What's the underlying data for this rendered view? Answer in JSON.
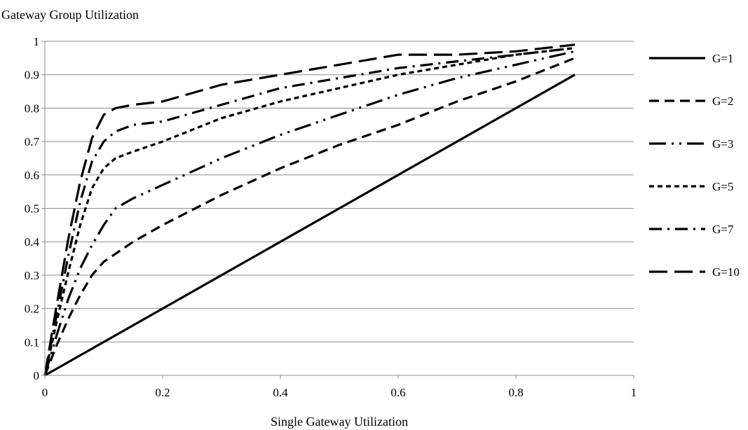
{
  "chart_data": {
    "type": "line",
    "ylabel": "Gateway Group Utilization",
    "xlabel": "Single Gateway Utilization",
    "xlim": [
      0,
      1
    ],
    "ylim": [
      0,
      1
    ],
    "x_ticks": [
      "0",
      "0.2",
      "0.4",
      "0.6",
      "0.8",
      "1"
    ],
    "y_ticks": [
      "0",
      "0.1",
      "0.2",
      "0.3",
      "0.4",
      "0.5",
      "0.6",
      "0.7",
      "0.8",
      "0.9",
      "1"
    ],
    "grid": "horizontal",
    "legend_position": "right",
    "series": [
      {
        "name": "G=1",
        "dash": "solid",
        "x": [
          0,
          0.9
        ],
        "y": [
          0,
          0.9
        ]
      },
      {
        "name": "G=2",
        "dash": "dash",
        "x": [
          0,
          0.02,
          0.04,
          0.06,
          0.08,
          0.1,
          0.15,
          0.2,
          0.3,
          0.4,
          0.5,
          0.6,
          0.7,
          0.8,
          0.9
        ],
        "y": [
          0,
          0.09,
          0.17,
          0.24,
          0.3,
          0.34,
          0.4,
          0.45,
          0.54,
          0.62,
          0.69,
          0.75,
          0.82,
          0.88,
          0.95
        ]
      },
      {
        "name": "G=3",
        "dash": "dash-dot-dot",
        "x": [
          0,
          0.02,
          0.04,
          0.06,
          0.08,
          0.1,
          0.12,
          0.15,
          0.2,
          0.3,
          0.4,
          0.5,
          0.6,
          0.7,
          0.8,
          0.9
        ],
        "y": [
          0,
          0.12,
          0.23,
          0.32,
          0.39,
          0.45,
          0.5,
          0.53,
          0.57,
          0.65,
          0.72,
          0.78,
          0.84,
          0.89,
          0.93,
          0.97
        ]
      },
      {
        "name": "G=5",
        "dash": "short-dash",
        "x": [
          0,
          0.02,
          0.04,
          0.06,
          0.08,
          0.1,
          0.12,
          0.15,
          0.2,
          0.3,
          0.4,
          0.5,
          0.6,
          0.7,
          0.8,
          0.9
        ],
        "y": [
          0,
          0.16,
          0.31,
          0.45,
          0.56,
          0.62,
          0.65,
          0.67,
          0.7,
          0.77,
          0.82,
          0.86,
          0.9,
          0.93,
          0.96,
          0.98
        ]
      },
      {
        "name": "G=7",
        "dash": "dash-dot",
        "x": [
          0,
          0.02,
          0.04,
          0.06,
          0.08,
          0.1,
          0.12,
          0.15,
          0.2,
          0.3,
          0.4,
          0.5,
          0.6,
          0.7,
          0.8,
          0.9
        ],
        "y": [
          0,
          0.18,
          0.36,
          0.52,
          0.64,
          0.7,
          0.73,
          0.75,
          0.76,
          0.81,
          0.86,
          0.89,
          0.92,
          0.94,
          0.96,
          0.98
        ]
      },
      {
        "name": "G=10",
        "dash": "long-dash",
        "x": [
          0,
          0.02,
          0.04,
          0.06,
          0.08,
          0.1,
          0.12,
          0.15,
          0.2,
          0.3,
          0.4,
          0.5,
          0.6,
          0.7,
          0.8,
          0.9
        ],
        "y": [
          0,
          0.21,
          0.41,
          0.58,
          0.71,
          0.78,
          0.8,
          0.81,
          0.82,
          0.87,
          0.9,
          0.93,
          0.96,
          0.96,
          0.97,
          0.99
        ]
      }
    ]
  }
}
